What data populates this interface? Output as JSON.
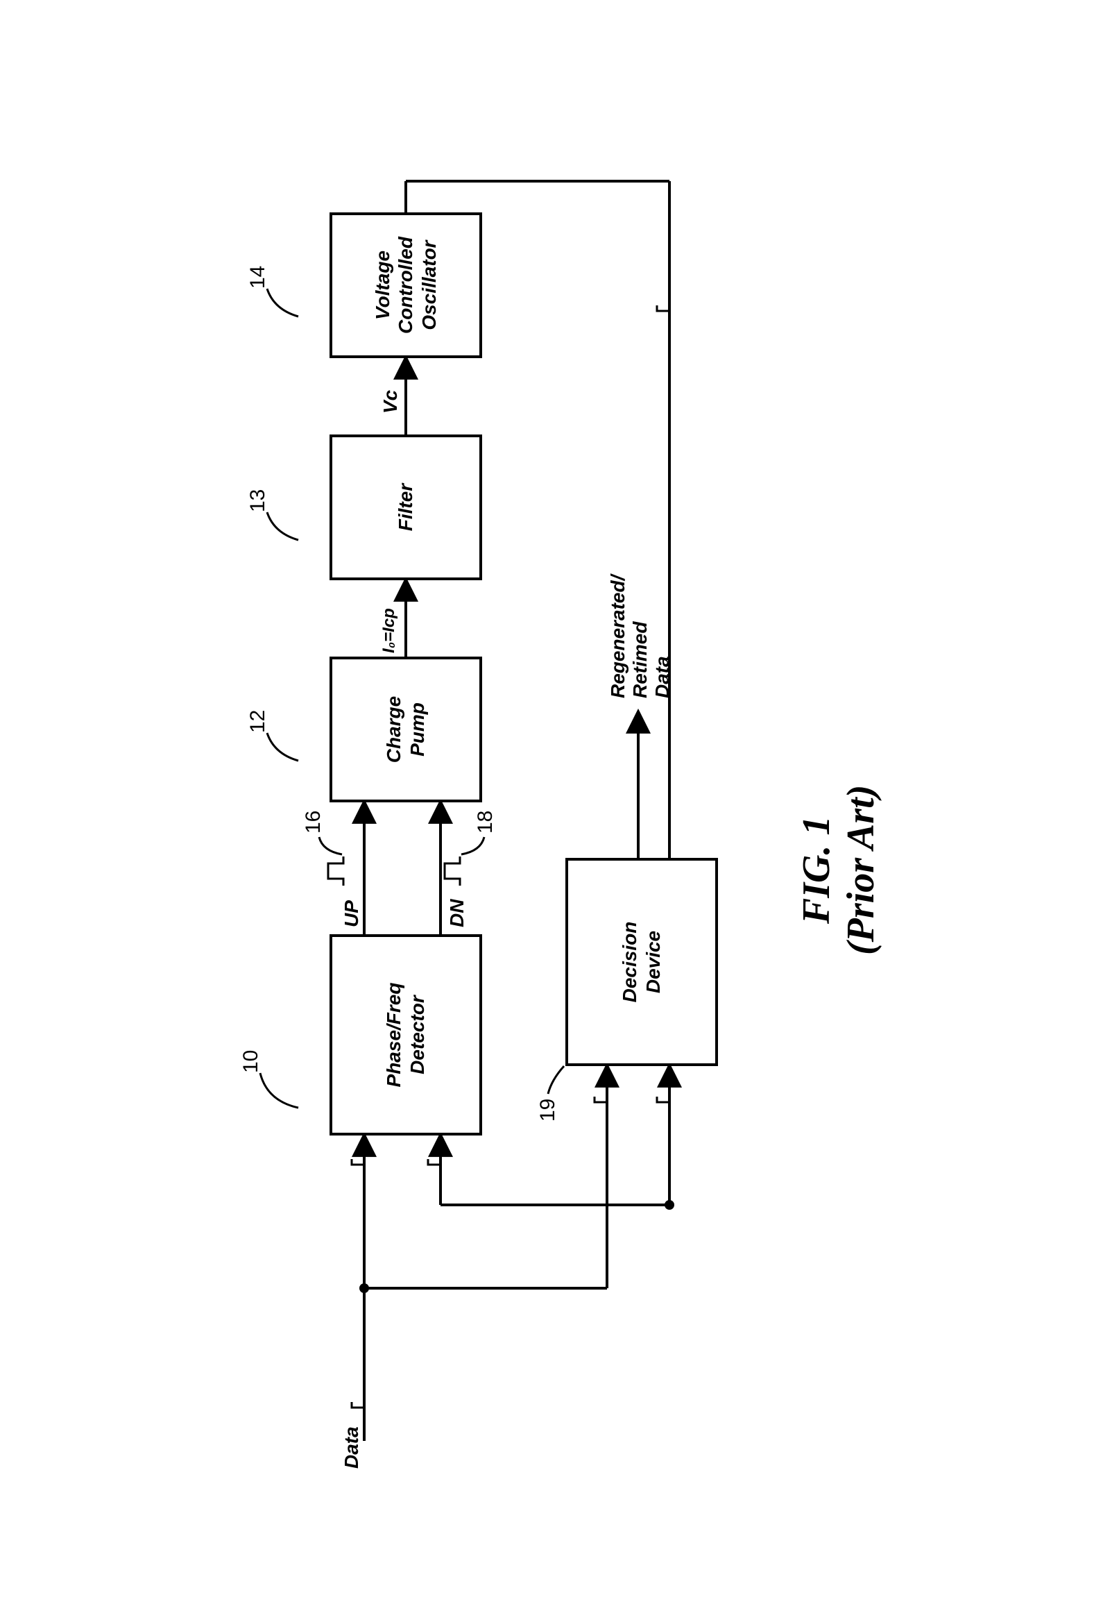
{
  "figure": {
    "title": "FIG. 1",
    "subtitle": "(Prior Art)"
  },
  "blocks": {
    "pfd": {
      "label": "Phase/Freq\nDetector",
      "ref": "10"
    },
    "cp": {
      "label": "Charge\nPump",
      "ref": "12"
    },
    "filter": {
      "label": "Filter",
      "ref": "13"
    },
    "vco": {
      "label": "Voltage\nControlled\nOscillator",
      "ref": "14"
    },
    "decision": {
      "label": "Decision\nDevice",
      "ref": "19"
    }
  },
  "signals": {
    "data_in": "Data",
    "up": "UP",
    "dn": "DN",
    "up_ref": "16",
    "dn_ref": "18",
    "io": "I₀=Icp",
    "vc": "Vc",
    "out": "Regenerated/\nRetimed\nData"
  },
  "style": {
    "stroke": "#000000",
    "stroke_width": 4,
    "block_border_width": 4,
    "background": "#ffffff",
    "font_italic_bold_size": 28,
    "ref_font_size": 30,
    "title_font_size": 56
  }
}
